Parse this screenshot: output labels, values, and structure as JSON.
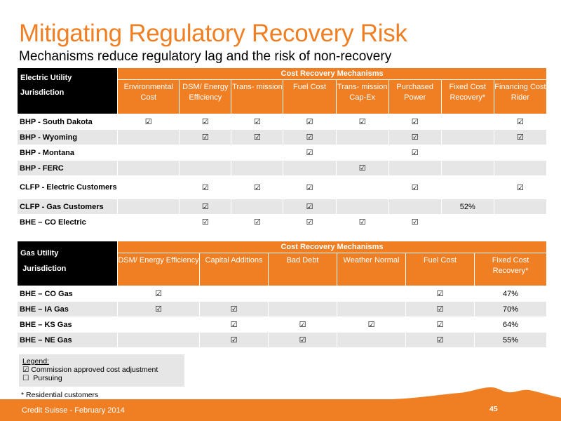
{
  "title": "Mitigating Regulatory Recovery Risk",
  "subtitle": "Mechanisms reduce regulatory lag and the risk of non-recovery",
  "check": "☑",
  "box": "☐",
  "electric": {
    "jurisdiction_label": "Electric Utility Jurisdiction",
    "mechanisms_label": "Cost Recovery Mechanisms",
    "columns": [
      "Environmental Cost",
      "DSM/ Energy Efficiency",
      "Trans- mission",
      "Fuel Cost",
      "Trans- mission Cap-Ex",
      "Purchased Power",
      "Fixed Cost Recovery*",
      "Financing Cost Rider"
    ],
    "rows": [
      {
        "name": "BHP - South Dakota",
        "cells": [
          "☑",
          "☑",
          "☑",
          "☑",
          "☑",
          "☑",
          "",
          "☑"
        ]
      },
      {
        "name": "BHP - Wyoming",
        "cells": [
          "",
          "☑",
          "☑",
          "☑",
          "",
          "☑",
          "",
          "☑"
        ]
      },
      {
        "name": "BHP - Montana",
        "cells": [
          "",
          "",
          "",
          "☑",
          "",
          "☑",
          "",
          ""
        ]
      },
      {
        "name": "BHP - FERC",
        "cells": [
          "",
          "",
          "",
          "",
          "☑",
          "",
          "",
          ""
        ]
      },
      {
        "name": "CLFP - Electric Customers",
        "cells": [
          "",
          "☑",
          "☑",
          "☑",
          "",
          "☑",
          "",
          "☑"
        ]
      },
      {
        "name": "CLFP - Gas Customers",
        "cells": [
          "",
          "☑",
          "",
          "☑",
          "",
          "",
          "52%",
          ""
        ]
      },
      {
        "name": "BHE – CO Electric",
        "cells": [
          "",
          "☑",
          "☑",
          "☑",
          "☑",
          "☑",
          "",
          ""
        ]
      }
    ]
  },
  "gas": {
    "jurisdiction_label_1": "Gas Utility",
    "jurisdiction_label_2": "Jurisdiction",
    "mechanisms_label": "Cost Recovery Mechanisms",
    "columns": [
      "DSM/ Energy Efficiency",
      "Capital Additions",
      "Bad Debt",
      "Weather Normal",
      "Fuel Cost",
      "Fixed Cost Recovery*"
    ],
    "rows": [
      {
        "name": "BHE – CO Gas",
        "cells": [
          "☑",
          "",
          "",
          "",
          "☑",
          "47%"
        ]
      },
      {
        "name": "BHE – IA Gas",
        "cells": [
          "☑",
          "☑",
          "",
          "",
          "☑",
          "70%"
        ]
      },
      {
        "name": "BHE – KS Gas",
        "cells": [
          "",
          "☑",
          "☑",
          "☑",
          "☑",
          "64%"
        ]
      },
      {
        "name": "BHE – NE Gas",
        "cells": [
          "",
          "☑",
          "☑",
          "",
          "☑",
          "55%"
        ]
      }
    ]
  },
  "legend": {
    "title": "Legend:",
    "item1": "Commission approved cost adjustment",
    "item2": "Pursuing"
  },
  "footnote": "* Residential customers",
  "footer": "Credit Suisse - February 2014",
  "page_number": "45",
  "colors": {
    "accent": "#f07f24",
    "shade": "#e6e6e6",
    "header_black": "#000000"
  }
}
